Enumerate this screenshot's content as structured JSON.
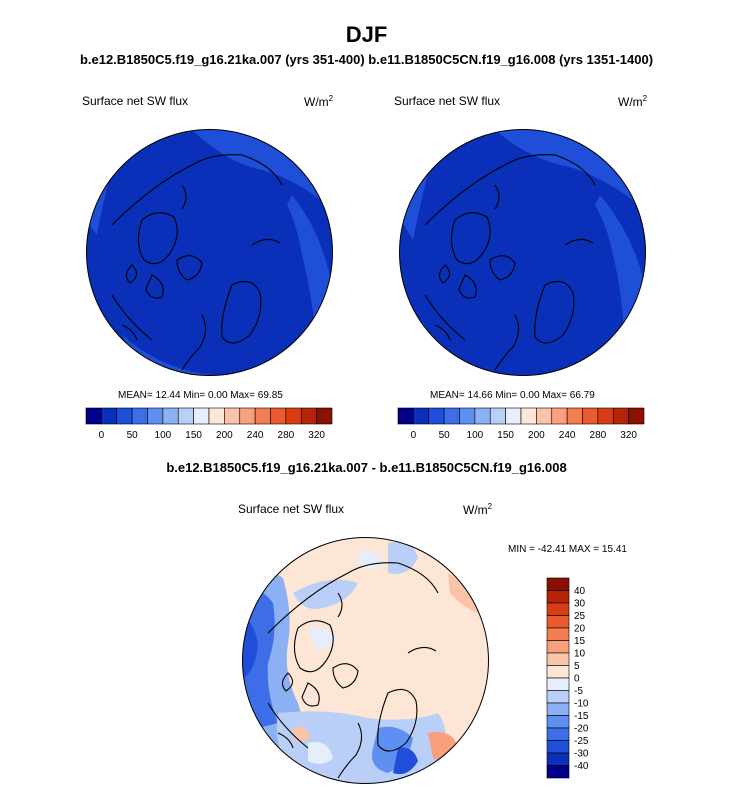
{
  "figure": {
    "title": "DJF",
    "subtitle": "b.e12.B1850C5.f19_g16.21ka.007 (yrs 351-400) b.e11.B1850C5CN.f19_g16.008 (yrs 1351-1400)",
    "diff_title": "b.e12.B1850C5.f19_g16.21ka.007 - b.e11.B1850C5CN.f19_g16.008"
  },
  "panels": [
    {
      "variable": "Surface net SW flux",
      "units": "W/m",
      "units_exp": "2",
      "stats": "MEAN=  12.44  Min=   0.00  Max=  69.85"
    },
    {
      "variable": "Surface net SW flux",
      "units": "W/m",
      "units_exp": "2",
      "stats": "MEAN=  14.66  Min=   0.00  Max=  66.79"
    }
  ],
  "abs_colorbar": {
    "colors": [
      "#00008b",
      "#0a2fb8",
      "#1f4fd8",
      "#3d6ee8",
      "#5f8ff0",
      "#8cb0f4",
      "#b9cff8",
      "#e6eefc",
      "#fde6d6",
      "#fbc4a8",
      "#f8a07c",
      "#f47d52",
      "#ec5a2f",
      "#d83c17",
      "#b5240a",
      "#8b0f02"
    ],
    "tick_labels": [
      "0",
      "50",
      "100",
      "150",
      "200",
      "240",
      "280",
      "320"
    ]
  },
  "diff_panel": {
    "variable": "Surface net SW flux",
    "units": "W/m",
    "units_exp": "2",
    "stats": "MIN = -42.41 MAX =  15.41"
  },
  "diff_colorbar": {
    "colors": [
      "#8b0f02",
      "#b5240a",
      "#d83c17",
      "#ec5a2f",
      "#f47d52",
      "#f8a07c",
      "#fbc4a8",
      "#fde6d6",
      "#e6eefc",
      "#b9cff8",
      "#8cb0f4",
      "#5f8ff0",
      "#3d6ee8",
      "#1f4fd8",
      "#0a2fb8",
      "#00008b"
    ],
    "labels": [
      "40",
      "30",
      "25",
      "20",
      "15",
      "10",
      "5",
      "0",
      "-5",
      "-10",
      "-15",
      "-20",
      "-25",
      "-30",
      "-40"
    ]
  }
}
